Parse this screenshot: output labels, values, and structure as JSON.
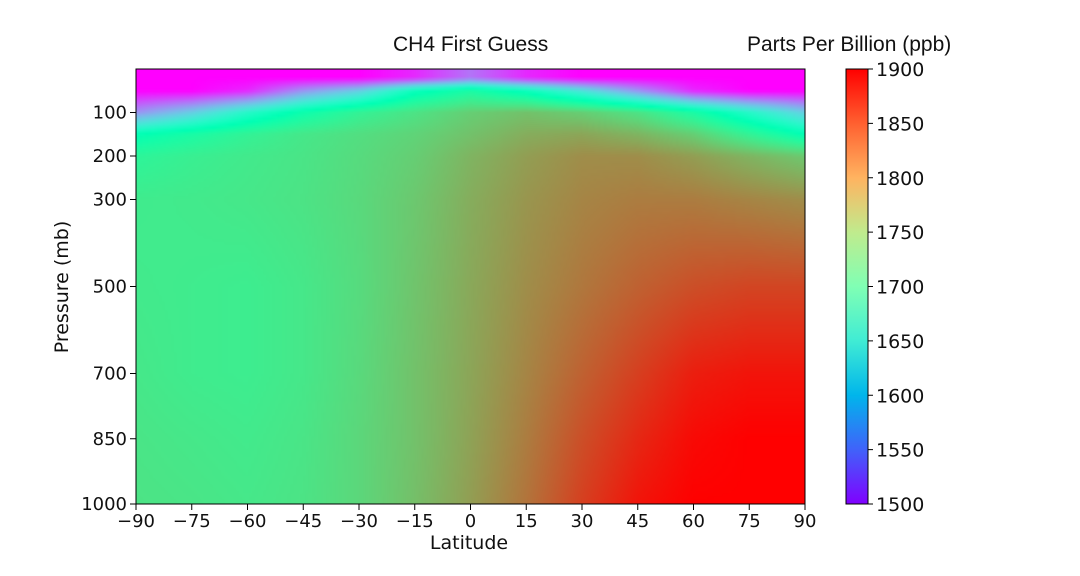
{
  "chart_data": {
    "type": "heatmap",
    "title": "CH4 First Guess",
    "colorbar_title": "Parts Per Billion (ppb)",
    "xlabel": "Latitude",
    "ylabel": "Pressure (mb)",
    "xlim": [
      -90,
      90
    ],
    "ylim": [
      1000,
      0
    ],
    "x_ticks": [
      -90,
      -75,
      -60,
      -45,
      -30,
      -15,
      0,
      15,
      30,
      45,
      60,
      75,
      90
    ],
    "x_tick_labels": [
      "−90",
      "−75",
      "−60",
      "−45",
      "−30",
      "−15",
      "0",
      "15",
      "30",
      "45",
      "60",
      "75",
      "90"
    ],
    "y_ticks": [
      100,
      200,
      300,
      500,
      700,
      850,
      1000
    ],
    "y_tick_labels": [
      "100",
      "200",
      "300",
      "500",
      "700",
      "850",
      "1000"
    ],
    "colorbar_ticks": [
      1900,
      1850,
      1800,
      1750,
      1700,
      1650,
      1600,
      1550,
      1500
    ],
    "colorbar_range": [
      1500,
      1900
    ],
    "colormap": "rainbow",
    "latitudes": [
      -90,
      -75,
      -60,
      -45,
      -30,
      -15,
      0,
      15,
      30,
      45,
      60,
      75,
      90
    ],
    "pressures": [
      20,
      50,
      100,
      150,
      200,
      300,
      500,
      700,
      850,
      1000
    ],
    "values": [
      [
        1500,
        1500,
        1500,
        1500,
        1500,
        1520,
        1560,
        1520,
        1500,
        1500,
        1500,
        1500,
        1500
      ],
      [
        1500,
        1500,
        1520,
        1580,
        1620,
        1690,
        1720,
        1690,
        1640,
        1580,
        1520,
        1500,
        1500
      ],
      [
        1580,
        1620,
        1670,
        1710,
        1740,
        1760,
        1780,
        1790,
        1780,
        1760,
        1720,
        1670,
        1620
      ],
      [
        1700,
        1720,
        1740,
        1755,
        1765,
        1775,
        1790,
        1805,
        1810,
        1800,
        1780,
        1740,
        1700
      ],
      [
        1735,
        1745,
        1752,
        1758,
        1768,
        1780,
        1800,
        1815,
        1825,
        1825,
        1815,
        1800,
        1785
      ],
      [
        1750,
        1752,
        1755,
        1760,
        1770,
        1785,
        1805,
        1820,
        1830,
        1835,
        1835,
        1830,
        1825
      ],
      [
        1752,
        1750,
        1748,
        1755,
        1768,
        1788,
        1808,
        1825,
        1838,
        1850,
        1860,
        1865,
        1865
      ],
      [
        1755,
        1750,
        1748,
        1755,
        1770,
        1790,
        1810,
        1830,
        1850,
        1868,
        1885,
        1890,
        1890
      ],
      [
        1758,
        1755,
        1752,
        1758,
        1772,
        1790,
        1812,
        1835,
        1860,
        1880,
        1895,
        1900,
        1900
      ],
      [
        1760,
        1758,
        1755,
        1760,
        1772,
        1792,
        1815,
        1840,
        1868,
        1890,
        1900,
        1900,
        1900
      ]
    ]
  }
}
